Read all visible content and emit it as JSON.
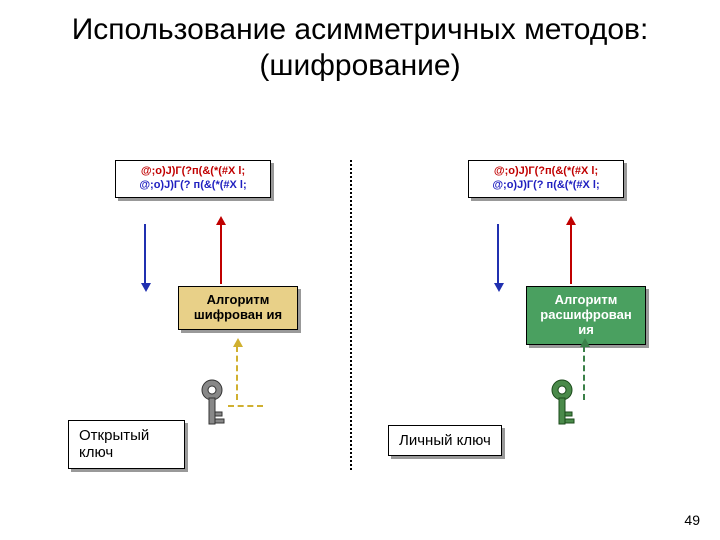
{
  "title": "Использование асимметричных методов: (шифрование)",
  "page_number": "49",
  "left": {
    "cipher_text_red": "@;о)J)Г(?п(&(*(#X l;",
    "cipher_text_blue": "@;о)J)Г(? п(&(*(#X l;",
    "algo_label": "Алгоритм шифрован ия",
    "algo_bg": "#e8d088",
    "key_label": "Открытый ключ",
    "key_color": "#6a6a6a",
    "dashed_color": "#d0b030"
  },
  "right": {
    "cipher_text_red": "@;о)J)Г(?п(&(*(#X l;",
    "cipher_text_blue": "@;о)J)Г(? п(&(*(#X l;",
    "algo_label": "Алгоритм расшифрован ия",
    "algo_bg": "#4aa060",
    "key_label": "Личный ключ",
    "key_color": "#3a7a3a",
    "dashed_color": "#3a8048"
  },
  "colors": {
    "red": "#c00000",
    "blue": "#2030b0",
    "shadow": "#999999",
    "background": "#ffffff"
  }
}
